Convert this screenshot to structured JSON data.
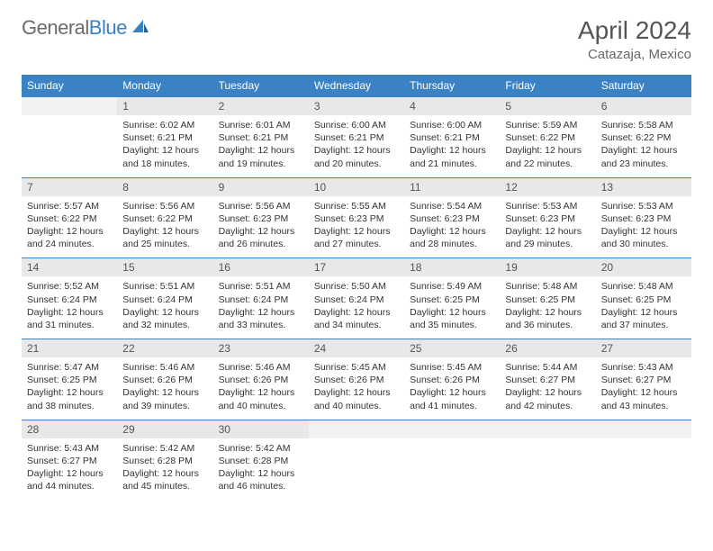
{
  "brand": {
    "part1": "General",
    "part2": "Blue"
  },
  "title": "April 2024",
  "location": "Catazaja, Mexico",
  "dayHeaders": [
    "Sunday",
    "Monday",
    "Tuesday",
    "Wednesday",
    "Thursday",
    "Friday",
    "Saturday"
  ],
  "colors": {
    "headerBg": "#3b82c4",
    "headerText": "#ffffff",
    "dayNumBg": "#e8e8e8",
    "borderColor": "#3b82c4"
  },
  "weeks": [
    [
      {
        "num": "",
        "lines": []
      },
      {
        "num": "1",
        "lines": [
          "Sunrise: 6:02 AM",
          "Sunset: 6:21 PM",
          "Daylight: 12 hours",
          "and 18 minutes."
        ]
      },
      {
        "num": "2",
        "lines": [
          "Sunrise: 6:01 AM",
          "Sunset: 6:21 PM",
          "Daylight: 12 hours",
          "and 19 minutes."
        ]
      },
      {
        "num": "3",
        "lines": [
          "Sunrise: 6:00 AM",
          "Sunset: 6:21 PM",
          "Daylight: 12 hours",
          "and 20 minutes."
        ]
      },
      {
        "num": "4",
        "lines": [
          "Sunrise: 6:00 AM",
          "Sunset: 6:21 PM",
          "Daylight: 12 hours",
          "and 21 minutes."
        ]
      },
      {
        "num": "5",
        "lines": [
          "Sunrise: 5:59 AM",
          "Sunset: 6:22 PM",
          "Daylight: 12 hours",
          "and 22 minutes."
        ]
      },
      {
        "num": "6",
        "lines": [
          "Sunrise: 5:58 AM",
          "Sunset: 6:22 PM",
          "Daylight: 12 hours",
          "and 23 minutes."
        ]
      }
    ],
    [
      {
        "num": "7",
        "lines": [
          "Sunrise: 5:57 AM",
          "Sunset: 6:22 PM",
          "Daylight: 12 hours",
          "and 24 minutes."
        ]
      },
      {
        "num": "8",
        "lines": [
          "Sunrise: 5:56 AM",
          "Sunset: 6:22 PM",
          "Daylight: 12 hours",
          "and 25 minutes."
        ]
      },
      {
        "num": "9",
        "lines": [
          "Sunrise: 5:56 AM",
          "Sunset: 6:23 PM",
          "Daylight: 12 hours",
          "and 26 minutes."
        ]
      },
      {
        "num": "10",
        "lines": [
          "Sunrise: 5:55 AM",
          "Sunset: 6:23 PM",
          "Daylight: 12 hours",
          "and 27 minutes."
        ]
      },
      {
        "num": "11",
        "lines": [
          "Sunrise: 5:54 AM",
          "Sunset: 6:23 PM",
          "Daylight: 12 hours",
          "and 28 minutes."
        ]
      },
      {
        "num": "12",
        "lines": [
          "Sunrise: 5:53 AM",
          "Sunset: 6:23 PM",
          "Daylight: 12 hours",
          "and 29 minutes."
        ]
      },
      {
        "num": "13",
        "lines": [
          "Sunrise: 5:53 AM",
          "Sunset: 6:23 PM",
          "Daylight: 12 hours",
          "and 30 minutes."
        ]
      }
    ],
    [
      {
        "num": "14",
        "lines": [
          "Sunrise: 5:52 AM",
          "Sunset: 6:24 PM",
          "Daylight: 12 hours",
          "and 31 minutes."
        ]
      },
      {
        "num": "15",
        "lines": [
          "Sunrise: 5:51 AM",
          "Sunset: 6:24 PM",
          "Daylight: 12 hours",
          "and 32 minutes."
        ]
      },
      {
        "num": "16",
        "lines": [
          "Sunrise: 5:51 AM",
          "Sunset: 6:24 PM",
          "Daylight: 12 hours",
          "and 33 minutes."
        ]
      },
      {
        "num": "17",
        "lines": [
          "Sunrise: 5:50 AM",
          "Sunset: 6:24 PM",
          "Daylight: 12 hours",
          "and 34 minutes."
        ]
      },
      {
        "num": "18",
        "lines": [
          "Sunrise: 5:49 AM",
          "Sunset: 6:25 PM",
          "Daylight: 12 hours",
          "and 35 minutes."
        ]
      },
      {
        "num": "19",
        "lines": [
          "Sunrise: 5:48 AM",
          "Sunset: 6:25 PM",
          "Daylight: 12 hours",
          "and 36 minutes."
        ]
      },
      {
        "num": "20",
        "lines": [
          "Sunrise: 5:48 AM",
          "Sunset: 6:25 PM",
          "Daylight: 12 hours",
          "and 37 minutes."
        ]
      }
    ],
    [
      {
        "num": "21",
        "lines": [
          "Sunrise: 5:47 AM",
          "Sunset: 6:25 PM",
          "Daylight: 12 hours",
          "and 38 minutes."
        ]
      },
      {
        "num": "22",
        "lines": [
          "Sunrise: 5:46 AM",
          "Sunset: 6:26 PM",
          "Daylight: 12 hours",
          "and 39 minutes."
        ]
      },
      {
        "num": "23",
        "lines": [
          "Sunrise: 5:46 AM",
          "Sunset: 6:26 PM",
          "Daylight: 12 hours",
          "and 40 minutes."
        ]
      },
      {
        "num": "24",
        "lines": [
          "Sunrise: 5:45 AM",
          "Sunset: 6:26 PM",
          "Daylight: 12 hours",
          "and 40 minutes."
        ]
      },
      {
        "num": "25",
        "lines": [
          "Sunrise: 5:45 AM",
          "Sunset: 6:26 PM",
          "Daylight: 12 hours",
          "and 41 minutes."
        ]
      },
      {
        "num": "26",
        "lines": [
          "Sunrise: 5:44 AM",
          "Sunset: 6:27 PM",
          "Daylight: 12 hours",
          "and 42 minutes."
        ]
      },
      {
        "num": "27",
        "lines": [
          "Sunrise: 5:43 AM",
          "Sunset: 6:27 PM",
          "Daylight: 12 hours",
          "and 43 minutes."
        ]
      }
    ],
    [
      {
        "num": "28",
        "lines": [
          "Sunrise: 5:43 AM",
          "Sunset: 6:27 PM",
          "Daylight: 12 hours",
          "and 44 minutes."
        ]
      },
      {
        "num": "29",
        "lines": [
          "Sunrise: 5:42 AM",
          "Sunset: 6:28 PM",
          "Daylight: 12 hours",
          "and 45 minutes."
        ]
      },
      {
        "num": "30",
        "lines": [
          "Sunrise: 5:42 AM",
          "Sunset: 6:28 PM",
          "Daylight: 12 hours",
          "and 46 minutes."
        ]
      },
      {
        "num": "",
        "lines": []
      },
      {
        "num": "",
        "lines": []
      },
      {
        "num": "",
        "lines": []
      },
      {
        "num": "",
        "lines": []
      }
    ]
  ]
}
